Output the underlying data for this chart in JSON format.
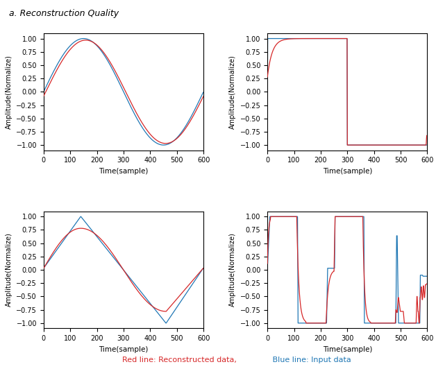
{
  "n_samples": 600,
  "ylabel": "Amplitude(Normalize)",
  "xlabel": "Time(sample)",
  "ylim": [
    -1.1,
    1.1
  ],
  "xlim": [
    0,
    600
  ],
  "blue_color": "#1f77b4",
  "red_color": "#d62728",
  "legend_text_red": "Red line: Reconstructed data,",
  "legend_text_blue": " Blue line: Input data",
  "figsize": [
    6.28,
    5.32
  ],
  "dpi": 100
}
